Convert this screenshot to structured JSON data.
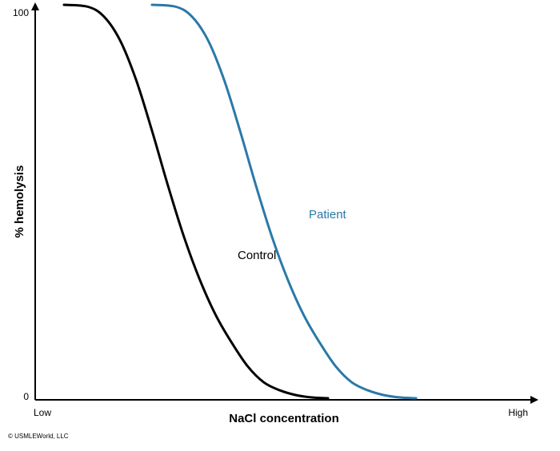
{
  "chart_data": {
    "type": "line",
    "xlabel": "NaCl concentration",
    "ylabel": "% hemolysis",
    "x_tick_labels": {
      "low": "Low",
      "high": "High"
    },
    "y_tick_labels": {
      "min": "0",
      "max": "100"
    },
    "xlim": [
      0,
      100
    ],
    "ylim": [
      0,
      100
    ],
    "grid": false,
    "series": [
      {
        "name": "Control",
        "color": "#000000",
        "x": [
          0,
          6,
          10,
          14,
          18,
          22,
          26,
          30,
          34,
          38,
          42,
          46,
          50,
          54,
          58,
          62,
          66
        ],
        "y": [
          100,
          99.5,
          97,
          91,
          81,
          68,
          54,
          41,
          30,
          21,
          14,
          8,
          4,
          2,
          0.8,
          0.2,
          0
        ]
      },
      {
        "name": "Patient",
        "color": "#2a79a8",
        "x": [
          22,
          28,
          32,
          36,
          40,
          44,
          48,
          52,
          56,
          60,
          64,
          68,
          72,
          76,
          80,
          84,
          88
        ],
        "y": [
          100,
          99.5,
          97,
          91,
          81,
          68,
          54,
          41,
          30,
          21,
          14,
          8,
          4,
          2,
          0.8,
          0.2,
          0
        ]
      }
    ]
  },
  "copyright": "© USMLEWorld, LLC"
}
